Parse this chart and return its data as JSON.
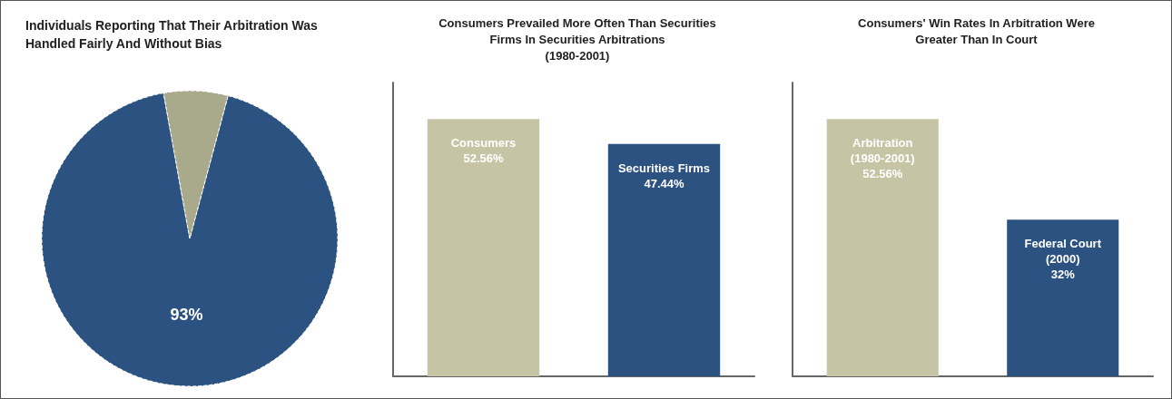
{
  "chart_data": [
    {
      "type": "pie",
      "title": "Individuals Reporting That Their Arbitration Was\nHandled Fairly And Without Bias",
      "categories": [
        null,
        null
      ],
      "values": [
        93,
        7
      ],
      "colors": [
        "#2b5281",
        "#a9a98c"
      ],
      "value_labels": [
        "93%",
        null
      ]
    },
    {
      "type": "bar",
      "title": "Consumers Prevailed More Often Than Securities\nFirms In Securities Arbitrations\n(1980-2001)",
      "categories": [
        "Consumers",
        "Securities Firms"
      ],
      "values": [
        52.56,
        47.44
      ],
      "colors": [
        "#c5c5a5",
        "#2b5281"
      ],
      "value_labels": [
        "52.56%",
        "47.44%"
      ],
      "tick_labels": false,
      "grid": false
    },
    {
      "type": "bar",
      "title": "Consumers' Win Rates In Arbitration Were\nGreater Than In Court",
      "categories": [
        "Arbitration\n(1980-2001)",
        "Federal Court\n(2000)"
      ],
      "values": [
        52.56,
        32
      ],
      "colors": [
        "#c5c5a5",
        "#2b5281"
      ],
      "value_labels": [
        "52.56%",
        "32%"
      ],
      "tick_labels": false,
      "grid": false
    }
  ]
}
